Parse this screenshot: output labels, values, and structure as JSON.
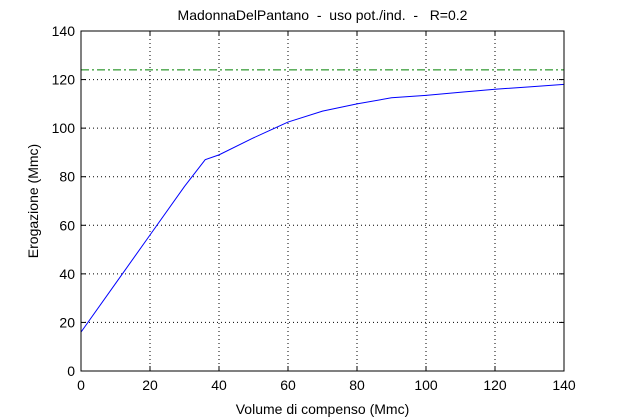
{
  "chart_data": {
    "type": "line",
    "title": "MadonnaDelPantano  -  uso pot./ind.  -   R=0.2",
    "xlabel": "Volume di compenso (Mmc)",
    "ylabel": "Erogazione (Mmc)",
    "xlim": [
      0,
      140
    ],
    "ylim": [
      0,
      140
    ],
    "xticks": [
      0,
      20,
      40,
      60,
      80,
      100,
      120,
      140
    ],
    "yticks": [
      0,
      20,
      40,
      60,
      80,
      100,
      120,
      140
    ],
    "grid": true,
    "legend": "none",
    "series": [
      {
        "color": "#0000ff",
        "style": "solid",
        "x": [
          0,
          10,
          20,
          30,
          36,
          40,
          50,
          60,
          70,
          80,
          90,
          100,
          110,
          120,
          130,
          140
        ],
        "y": [
          16,
          36,
          56,
          76,
          87,
          89,
          96,
          102.5,
          107,
          110,
          112.5,
          113.5,
          114.8,
          116,
          117,
          118
        ]
      },
      {
        "color": "#008000",
        "style": "dashdot",
        "x": [
          0,
          140
        ],
        "y": [
          124,
          124
        ]
      }
    ]
  }
}
